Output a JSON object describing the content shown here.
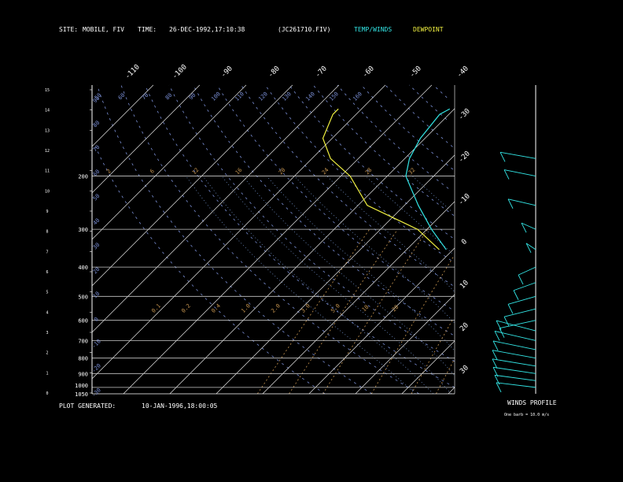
{
  "header": {
    "site_label": "SITE:",
    "site_value": "MOBILE, FIV",
    "time_label": "TIME:",
    "time_value": "26-DEC-1992,17:10:38",
    "file_value": "(JC261710.FIV)",
    "legend_temp": "TEMP/WINDS",
    "legend_dewpoint": "DEWPOINT"
  },
  "footer": {
    "generated_label": "PLOT GENERATED:",
    "generated_value": "10-JAN-1996,18:00:05"
  },
  "winds": {
    "title": "WINDS PROFILE",
    "note": "One barb = 10.0 m/s"
  },
  "colors": {
    "background": "#000000",
    "temp": "#33e6e6",
    "dewpoint": "#f0f040",
    "isobar": "#c8c8c8",
    "isotherm": "#e6e6e6",
    "mixing_ratio": "#c89650",
    "dry_adiabat": "#7a8fd6",
    "moist_adiabat": "#7090c8"
  },
  "chart_data": {
    "type": "line",
    "title": "",
    "xlabel": "",
    "ylabel": "",
    "pressure_levels": [
      400,
      300,
      200,
      1000,
      1050,
      500,
      600,
      700,
      800,
      900
    ],
    "pressure_labels": [
      "400",
      "300",
      "200",
      "1000",
      "1050",
      "500",
      "600",
      "700",
      "800",
      "900"
    ],
    "top_temp_labels": [
      "-110",
      "-100",
      "-90",
      "-80",
      "-70",
      "-60",
      "-50",
      "-40"
    ],
    "right_temp_labels": [
      "-30",
      "-20",
      "-10",
      "0",
      "10",
      "20",
      "30"
    ],
    "height_km": [
      "15",
      "14",
      "13",
      "12",
      "11",
      "10",
      "9",
      "8",
      "7",
      "6",
      "5",
      "4",
      "3",
      "2",
      "1",
      "0"
    ],
    "dry_adiabat_labels": [
      "90",
      "80",
      "70",
      "60",
      "50",
      "40",
      "30",
      "20",
      "10",
      "0",
      "-10",
      "-20",
      "-30"
    ],
    "top_theta_labels": [
      "50",
      "60",
      "70",
      "80",
      "90",
      "100",
      "110",
      "120",
      "130",
      "140",
      "150",
      "160"
    ],
    "mixing_ratio_labels_upper": [
      "2",
      "6",
      "12",
      "16",
      "20",
      "24",
      "28",
      "32"
    ],
    "mixing_ratio_labels_lower": [
      "0.1",
      "0.2",
      "0.4",
      "1.0",
      "2.0",
      "3.0",
      "5.0",
      "10",
      "20"
    ],
    "series": [
      {
        "name": "TEMP/WINDS",
        "pressure": [
          1030,
          1000,
          950,
          900,
          850,
          800,
          750,
          700,
          650,
          600,
          550,
          500,
          450,
          400,
          350,
          300,
          250,
          200,
          175,
          150,
          125,
          120
        ],
        "temperature": [
          22.5,
          21,
          17,
          14,
          12,
          9,
          6,
          3,
          -1.5,
          -5,
          -9,
          -14,
          -19,
          -25,
          -31.5,
          -39,
          -47,
          -56,
          -59,
          -61,
          -62,
          -61
        ]
      },
      {
        "name": "DEWPOINT",
        "pressure": [
          1030,
          1000,
          950,
          900,
          870,
          850,
          800,
          780,
          750,
          700,
          680,
          650,
          600,
          550,
          500,
          450,
          400,
          350,
          300,
          250,
          200,
          175,
          150,
          125,
          120
        ],
        "temperature": [
          20,
          18,
          15,
          11,
          13,
          11,
          10,
          6,
          4,
          2,
          -2,
          0,
          -6,
          -8,
          -13,
          -19,
          -25,
          -33,
          -42,
          -58,
          -68,
          -76,
          -82,
          -85,
          -85
        ]
      }
    ],
    "wind_shaft_length": [
      50,
      52,
      54,
      55,
      55,
      54,
      52,
      50,
      46,
      40,
      35,
      28,
      22,
      12,
      18,
      35,
      40,
      45
    ],
    "wind_pressure": [
      1000,
      950,
      900,
      850,
      800,
      750,
      700,
      650,
      600,
      550,
      500,
      450,
      400,
      350,
      300,
      250,
      200,
      175
    ]
  }
}
